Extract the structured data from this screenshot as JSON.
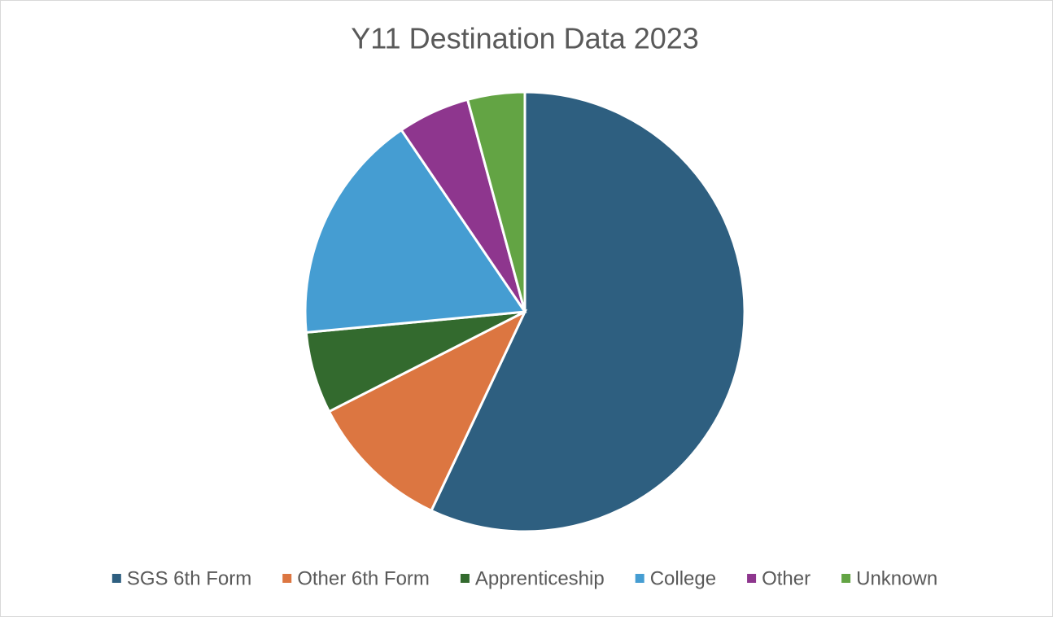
{
  "chart_data": {
    "type": "pie",
    "title": "Y11 Destination Data 2023",
    "categories": [
      "SGS 6th Form",
      "Other 6th Form",
      "Apprenticeship",
      "College",
      "Other",
      "Unknown"
    ],
    "values": [
      57,
      10.5,
      6,
      17,
      5.3,
      4.2
    ],
    "colors": [
      "#2e5f80",
      "#dc7641",
      "#336a2e",
      "#459dd2",
      "#8e368e",
      "#63a444"
    ],
    "legend": "bottom"
  }
}
